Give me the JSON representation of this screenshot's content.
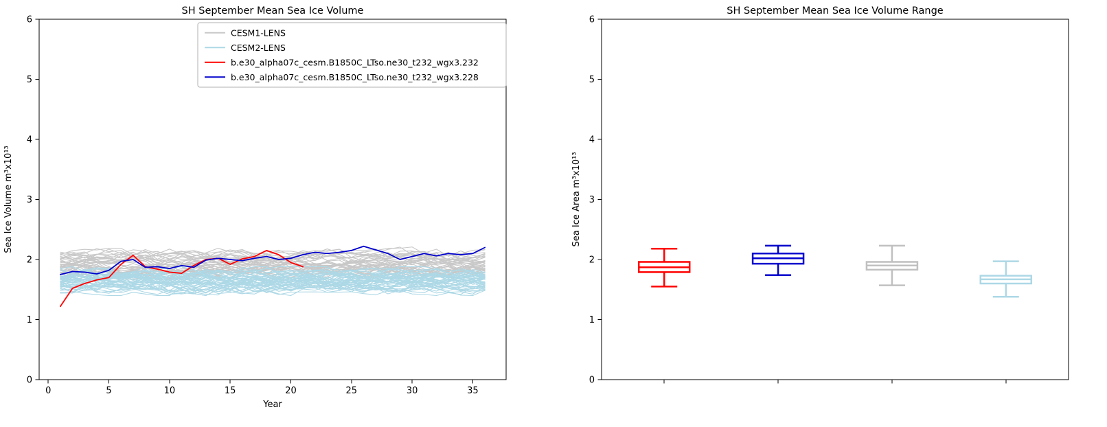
{
  "figure": {
    "background": "#ffffff"
  },
  "chart_data": [
    {
      "type": "line",
      "title": "SH September Mean Sea Ice Volume",
      "xlabel": "Year",
      "ylabel": "Sea Ice Volume m³x10¹³",
      "xlim": [
        -0.75,
        37.75
      ],
      "ylim": [
        0,
        6
      ],
      "xticks": [
        0,
        5,
        10,
        15,
        20,
        25,
        30,
        35
      ],
      "yticks": [
        0,
        1,
        2,
        3,
        4,
        5,
        6
      ],
      "grid": false,
      "legend_position": "upper center-right inside axes",
      "legend": [
        {
          "label": "CESM1-LENS",
          "color": "#c8c8c8"
        },
        {
          "label": "CESM2-LENS",
          "color": "#add8e6"
        },
        {
          "label": "b.e30_alpha07c_cesm.B1850C_LTso.ne30_t232_wgx3.232",
          "color": "#ff0000"
        },
        {
          "label": "b.e30_alpha07c_cesm.B1850C_LTso.ne30_t232_wgx3.228",
          "color": "#0000cd"
        }
      ],
      "ensembles": [
        {
          "name": "CESM1-LENS",
          "color": "#c8c8c8",
          "members": 40,
          "x_start": 1,
          "x_end": 36,
          "y_center": 1.95,
          "y_spread": 0.28
        },
        {
          "name": "CESM2-LENS",
          "color": "#add8e6",
          "members": 45,
          "x_start": 1,
          "x_end": 36,
          "y_center": 1.64,
          "y_spread": 0.24
        }
      ],
      "series": [
        {
          "name": "b.e30_alpha07c_cesm.B1850C_LTso.ne30_t232_wgx3.232",
          "color": "#ff0000",
          "x": [
            1,
            2,
            3,
            4,
            5,
            6,
            7,
            8,
            9,
            10,
            11,
            12,
            13,
            14,
            15,
            16,
            17,
            18,
            19,
            20,
            21
          ],
          "y": [
            1.22,
            1.52,
            1.6,
            1.66,
            1.7,
            1.92,
            2.07,
            1.88,
            1.84,
            1.79,
            1.77,
            1.9,
            2.0,
            2.02,
            1.92,
            2.01,
            2.05,
            2.15,
            2.08,
            1.95,
            1.88
          ]
        },
        {
          "name": "b.e30_alpha07c_cesm.B1850C_LTso.ne30_t232_wgx3.228",
          "color": "#0000cd",
          "x": [
            1,
            2,
            3,
            4,
            5,
            6,
            7,
            8,
            9,
            10,
            11,
            12,
            13,
            14,
            15,
            16,
            17,
            18,
            19,
            20,
            21,
            22,
            23,
            24,
            25,
            26,
            27,
            28,
            29,
            30,
            31,
            32,
            33,
            34,
            35,
            36
          ],
          "y": [
            1.75,
            1.8,
            1.79,
            1.76,
            1.82,
            1.97,
            2.0,
            1.87,
            1.88,
            1.85,
            1.9,
            1.87,
            1.99,
            2.02,
            2.0,
            1.98,
            2.02,
            2.05,
            2.0,
            2.02,
            2.08,
            2.12,
            2.1,
            2.12,
            2.15,
            2.22,
            2.16,
            2.1,
            2.0,
            2.05,
            2.1,
            2.06,
            2.1,
            2.08,
            2.1,
            2.2
          ]
        }
      ]
    },
    {
      "type": "box",
      "title": "SH September Mean Sea Ice Volume Range",
      "xlabel": "",
      "ylabel": "Sea Ice Area m³x10¹³",
      "xlim": [
        0.45,
        4.55
      ],
      "ylim": [
        0,
        6
      ],
      "yticks": [
        0,
        1,
        2,
        3,
        4,
        5,
        6
      ],
      "grid": false,
      "boxes": [
        {
          "name": "b.e30_alpha07c_cesm.B1850C_LTso.ne30_t232_wgx3.232",
          "position": 1,
          "color": "#ff0000",
          "whisker_low": 1.55,
          "q1": 1.79,
          "median": 1.87,
          "q3": 1.96,
          "whisker_high": 2.18
        },
        {
          "name": "b.e30_alpha07c_cesm.B1850C_LTso.ne30_t232_wgx3.228",
          "position": 2,
          "color": "#0000cd",
          "whisker_low": 1.74,
          "q1": 1.93,
          "median": 2.02,
          "q3": 2.1,
          "whisker_high": 2.23
        },
        {
          "name": "CESM1-LENS",
          "position": 3,
          "color": "#c0c0c0",
          "whisker_low": 1.57,
          "q1": 1.83,
          "median": 1.9,
          "q3": 1.96,
          "whisker_high": 2.23
        },
        {
          "name": "CESM2-LENS",
          "position": 4,
          "color": "#add8e6",
          "whisker_low": 1.38,
          "q1": 1.6,
          "median": 1.67,
          "q3": 1.73,
          "whisker_high": 1.97
        }
      ]
    }
  ]
}
